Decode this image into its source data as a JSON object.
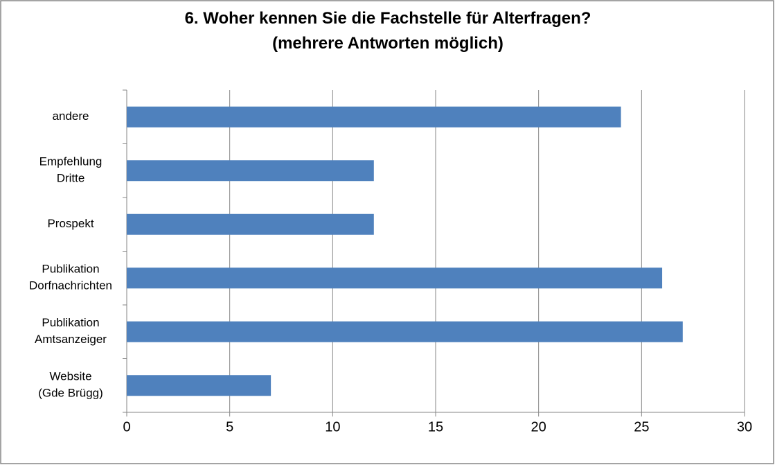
{
  "chart_data": {
    "type": "bar",
    "orientation": "horizontal",
    "title": "6. Woher kennen Sie die Fachstelle für Alterfragen?\n(mehrere Antworten möglich)",
    "categories": [
      "andere",
      "Empfehlung\nDritte",
      "Prospekt",
      "Publikation\nDorfnachrichten",
      "Publikation\nAmtsanzeiger",
      "Website\n(Gde Brügg)"
    ],
    "values": [
      24,
      12,
      12,
      26,
      27,
      7
    ],
    "color": "#4f81bd",
    "xlim": [
      0,
      30
    ],
    "xticks": [
      0,
      5,
      10,
      15,
      20,
      25,
      30
    ],
    "grid": true
  }
}
